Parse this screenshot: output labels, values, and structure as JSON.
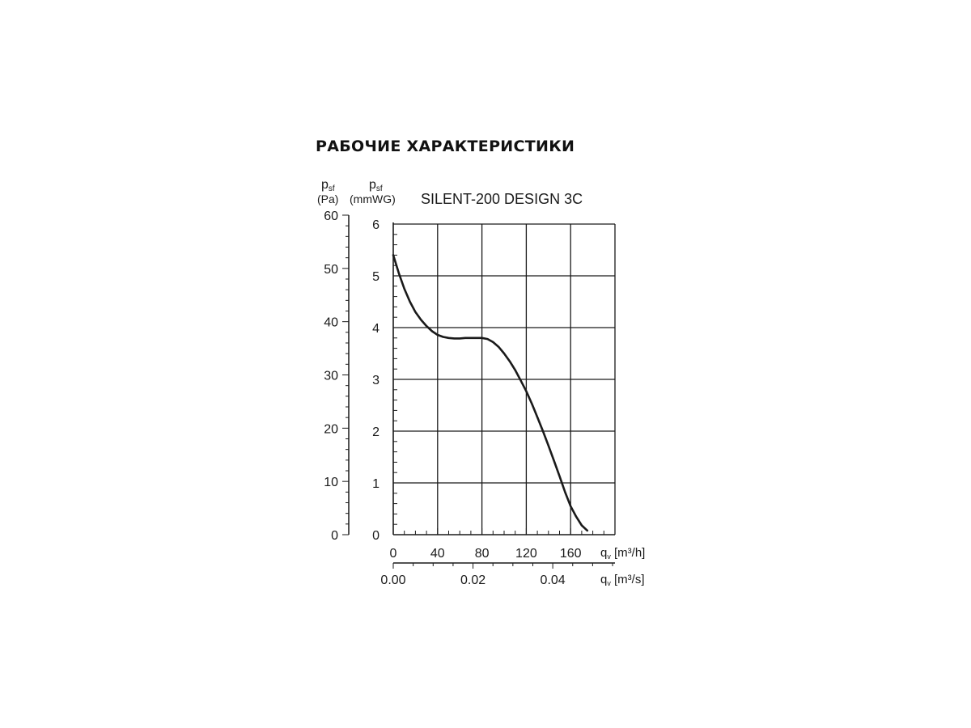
{
  "page_heading": "РАБОЧИЕ ХАРАКТЕРИСТИКИ",
  "colors": {
    "ink": "#1a1a1a",
    "grid": "#1a1a1a",
    "background": "#ffffff"
  },
  "chart_data": {
    "type": "line",
    "title": "SILENT-200 DESIGN 3C",
    "y_axes": [
      {
        "label_main": "p",
        "label_sub": "sf",
        "unit": "(Pa)",
        "ylim": [
          0,
          60
        ],
        "ticks": [
          0,
          10,
          20,
          30,
          40,
          50,
          60
        ]
      },
      {
        "label_main": "p",
        "label_sub": "sf",
        "unit": "(mmWG)",
        "ylim": [
          0,
          6
        ],
        "ticks": [
          0,
          1,
          2,
          3,
          4,
          5,
          6
        ]
      }
    ],
    "x_axes": [
      {
        "label_main": "q",
        "label_sub": "v",
        "unit": "[m³/h]",
        "xlim": [
          0,
          200
        ],
        "ticks": [
          0,
          40,
          80,
          120,
          160
        ],
        "tick_labels": [
          "0",
          "40",
          "80",
          "120",
          "160"
        ]
      },
      {
        "label_main": "q",
        "label_sub": "v",
        "unit": "[m³/s]",
        "xlim": [
          0,
          0.0556
        ],
        "ticks": [
          0,
          0.02,
          0.04
        ],
        "tick_labels": [
          "0.00",
          "0.02",
          "0.04"
        ]
      }
    ],
    "grid": true,
    "series": [
      {
        "x": [
          0,
          5,
          10,
          15,
          20,
          25,
          30,
          35,
          40,
          45,
          50,
          55,
          60,
          65,
          70,
          75,
          80,
          85,
          90,
          95,
          100,
          105,
          110,
          115,
          120,
          125,
          130,
          135,
          140,
          145,
          150,
          155,
          160,
          165,
          170,
          175
        ],
        "y": [
          5.4,
          5.05,
          4.75,
          4.5,
          4.3,
          4.15,
          4.03,
          3.93,
          3.86,
          3.82,
          3.8,
          3.79,
          3.79,
          3.8,
          3.8,
          3.8,
          3.8,
          3.78,
          3.72,
          3.63,
          3.5,
          3.35,
          3.18,
          2.98,
          2.77,
          2.53,
          2.27,
          2.0,
          1.72,
          1.43,
          1.13,
          0.82,
          0.55,
          0.35,
          0.18,
          0.08
        ]
      }
    ]
  }
}
